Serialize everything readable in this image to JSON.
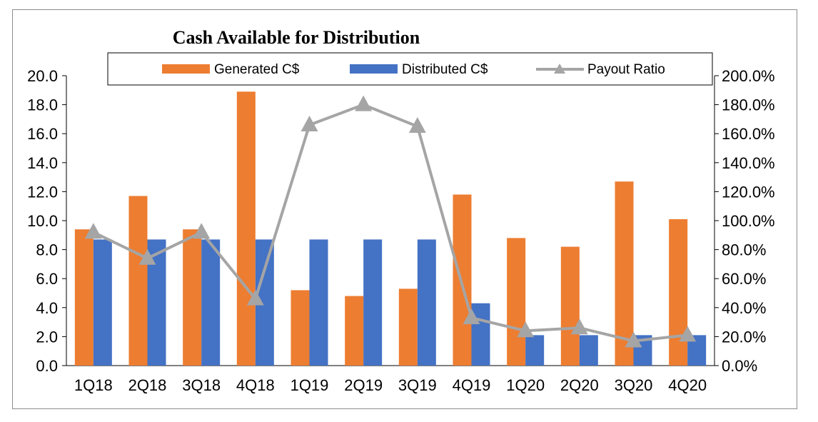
{
  "chart_data": {
    "type": "bar",
    "title": "Cash Available for Distribution",
    "categories": [
      "1Q18",
      "2Q18",
      "3Q18",
      "4Q18",
      "1Q19",
      "2Q19",
      "3Q19",
      "4Q19",
      "1Q20",
      "2Q20",
      "3Q20",
      "4Q20"
    ],
    "series": [
      {
        "name": "Generated C$",
        "type": "bar",
        "axis": "left",
        "color": "#ED7D31",
        "values": [
          9.4,
          11.7,
          9.4,
          18.9,
          5.2,
          4.8,
          5.3,
          11.8,
          8.8,
          8.2,
          12.7,
          10.1
        ]
      },
      {
        "name": "Distributed C$",
        "type": "bar",
        "axis": "left",
        "color": "#4472C4",
        "values": [
          8.7,
          8.7,
          8.7,
          8.7,
          8.7,
          8.7,
          8.7,
          4.3,
          2.1,
          2.1,
          2.1,
          2.1
        ]
      },
      {
        "name": "Payout Ratio",
        "type": "line",
        "axis": "right",
        "color": "#A5A5A5",
        "marker": "triangle",
        "values": [
          92.0,
          74.0,
          92.0,
          46.0,
          166.0,
          180.0,
          165.0,
          33.0,
          24.0,
          26.0,
          17.0,
          21.0
        ]
      }
    ],
    "y_left": {
      "ylim": [
        0,
        20
      ],
      "ticks": [
        "0.0",
        "2.0",
        "4.0",
        "6.0",
        "8.0",
        "10.0",
        "12.0",
        "14.0",
        "16.0",
        "18.0",
        "20.0"
      ]
    },
    "y_right": {
      "ylim": [
        0,
        200
      ],
      "ticks": [
        "0.0%",
        "20.0%",
        "40.0%",
        "60.0%",
        "80.0%",
        "100.0%",
        "120.0%",
        "140.0%",
        "160.0%",
        "180.0%",
        "200.0%"
      ]
    },
    "legend": {
      "position": "top",
      "entries": [
        "Generated C$",
        "Distributed C$",
        "Payout Ratio"
      ]
    },
    "grid": false
  }
}
